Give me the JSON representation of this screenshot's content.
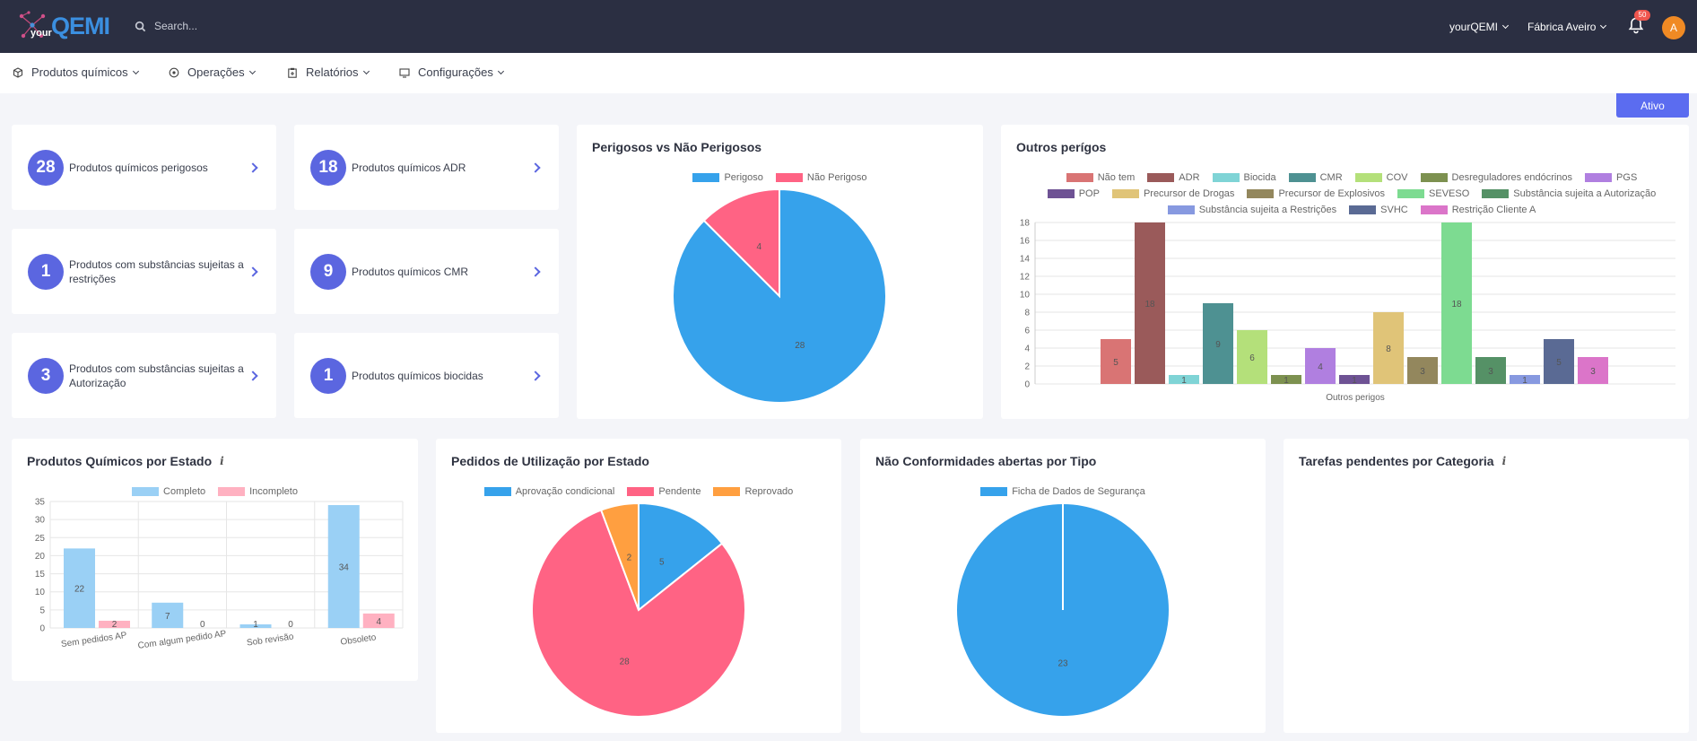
{
  "header": {
    "logo_small": "your",
    "logo_big": "QEMI",
    "search_placeholder": "Search...",
    "user_menu": "yourQEMI",
    "org_menu": "Fábrica Aveiro",
    "notifications_count": "50",
    "avatar_initial": "A",
    "icons": [
      "search-icon",
      "bell-icon",
      "chevron-down-icon"
    ]
  },
  "nav": {
    "items": [
      {
        "label": "Produtos químicos",
        "icon": "cube-icon"
      },
      {
        "label": "Operações",
        "icon": "circle-dot-icon"
      },
      {
        "label": "Relatórios",
        "icon": "clipboard-icon"
      },
      {
        "label": "Configurações",
        "icon": "monitor-icon"
      }
    ]
  },
  "status_button": "Ativo",
  "kpis": [
    {
      "value": "28",
      "label": "Produtos químicos perigosos"
    },
    {
      "value": "18",
      "label": "Produtos químicos ADR"
    },
    {
      "value": "1",
      "label": "Produtos com substâncias sujeitas a restrições"
    },
    {
      "value": "9",
      "label": "Produtos químicos CMR"
    },
    {
      "value": "3",
      "label": "Produtos com substâncias sujeitas a Autorização"
    },
    {
      "value": "1",
      "label": "Produtos químicos biocidas"
    }
  ],
  "colors": {
    "accent": "#5b66e0",
    "blue": "#36a2eb",
    "pink": "#ff6384",
    "orange": "#ff9f40",
    "light_blue": "#9ad0f5",
    "light_pink": "#ffb1c1"
  },
  "chart_data": [
    {
      "type": "pie",
      "title": "Perigosos vs Não Perigosos",
      "categories": [
        "Perigoso",
        "Não Perigoso"
      ],
      "values": [
        28,
        4
      ],
      "colors": [
        "#36a2eb",
        "#ff6384"
      ],
      "legend": "top"
    },
    {
      "type": "bar",
      "title": "Outros perígos",
      "xlabel": "Outros perigos",
      "categories": [
        "Não tem",
        "ADR",
        "Biocida",
        "CMR",
        "COV",
        "Desreguladores endócrinos",
        "PGS",
        "POP",
        "Precursor de Drogas",
        "Precursor de Explosivos",
        "SEVESO",
        "Substância sujeita a Autorização",
        "Substância sujeita a Restrições",
        "SVHC",
        "Restrição Cliente A"
      ],
      "values": [
        5,
        18,
        1,
        9,
        6,
        1,
        4,
        1,
        8,
        3,
        18,
        3,
        1,
        5,
        3
      ],
      "colors": [
        "#d97474",
        "#9a5a5a",
        "#7fd4d6",
        "#4e9192",
        "#b4e07a",
        "#7d9150",
        "#b07fe0",
        "#6e5294",
        "#e0c478",
        "#93875d",
        "#7ddb91",
        "#559166",
        "#8799e0",
        "#5a6a94",
        "#db75c9"
      ],
      "ylim": [
        0,
        18
      ],
      "yticks": [
        0,
        2,
        4,
        6,
        8,
        10,
        12,
        14,
        16,
        18
      ],
      "legend": "top",
      "grid": true
    },
    {
      "type": "bar",
      "title": "Produtos Químicos por Estado",
      "info_icon": "i",
      "categories": [
        "Sem pedidos AP",
        "Com algum pedido AP",
        "Sob revisão",
        "Obsoleto"
      ],
      "series": [
        {
          "name": "Completo",
          "values": [
            22,
            7,
            1,
            34
          ],
          "color": "#9ad0f5"
        },
        {
          "name": "Incompleto",
          "values": [
            2,
            0,
            0,
            4
          ],
          "color": "#ffb1c1"
        }
      ],
      "ylim": [
        0,
        35
      ],
      "yticks": [
        0,
        5,
        10,
        15,
        20,
        25,
        30,
        35
      ],
      "legend": "top",
      "grid": true
    },
    {
      "type": "pie",
      "title": "Pedidos de Utilização por Estado",
      "categories": [
        "Aprovação condicional",
        "Pendente",
        "Reprovado"
      ],
      "values": [
        5,
        28,
        2
      ],
      "colors": [
        "#36a2eb",
        "#ff6384",
        "#ff9f40"
      ],
      "legend": "top"
    },
    {
      "type": "pie",
      "title": "Não Conformidades abertas por Tipo",
      "categories": [
        "Ficha de Dados de Segurança"
      ],
      "values": [
        23
      ],
      "colors": [
        "#36a2eb"
      ],
      "legend": "top"
    },
    {
      "type": "bar",
      "title": "Tarefas pendentes por Categoria",
      "info_icon": "i",
      "categories": [],
      "values": []
    }
  ]
}
